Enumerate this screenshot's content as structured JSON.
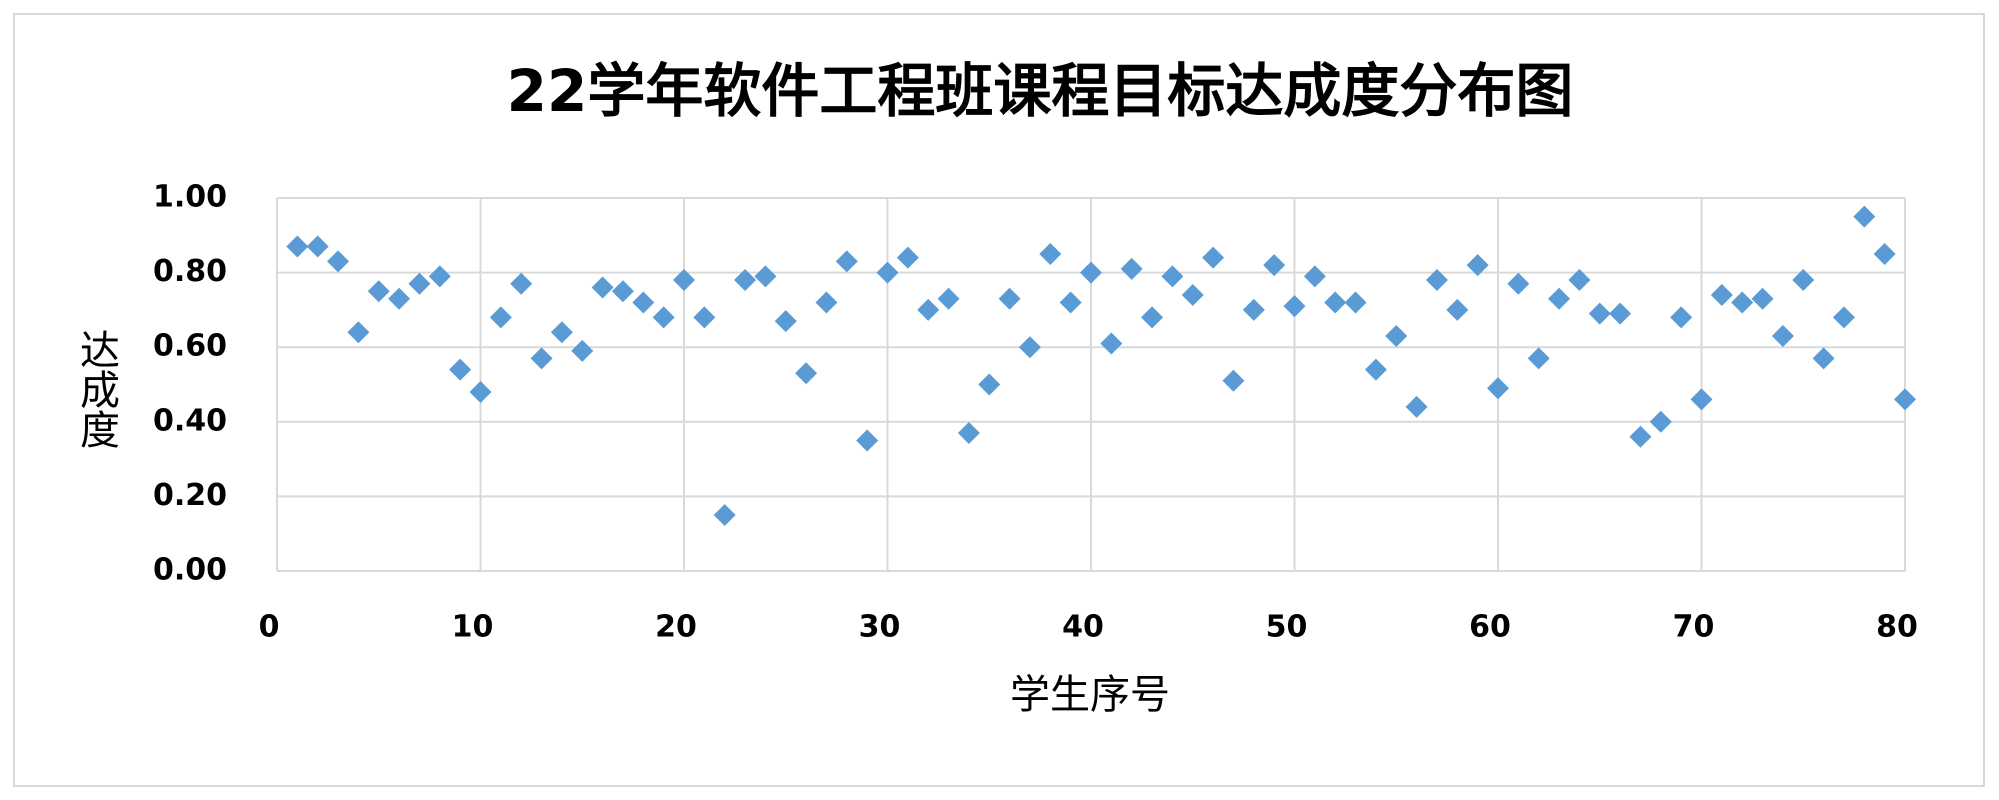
{
  "chart_data": {
    "type": "scatter",
    "title": "22学年软件工程班课程目标达成度分布图",
    "x_label": "学生序号",
    "y_label": "达成度",
    "color": "#5b9bd5",
    "grid": true,
    "xlim": [
      0,
      80
    ],
    "xticks": [
      0,
      10,
      20,
      30,
      40,
      50,
      60,
      70,
      80
    ],
    "ylim": [
      0,
      1
    ],
    "yticks": [
      {
        "value": 0,
        "label": "0.00"
      },
      {
        "value": 0.2,
        "label": "0.20"
      },
      {
        "value": 0.4,
        "label": "0.40"
      },
      {
        "value": 0.6,
        "label": "0.60"
      },
      {
        "value": 0.8,
        "label": "0.80"
      },
      {
        "value": 1,
        "label": "1.00"
      }
    ],
    "x": [
      1,
      2,
      3,
      4,
      5,
      6,
      7,
      8,
      9,
      10,
      11,
      12,
      13,
      14,
      15,
      16,
      17,
      18,
      19,
      20,
      21,
      22,
      23,
      24,
      25,
      26,
      27,
      28,
      29,
      30,
      31,
      32,
      33,
      34,
      35,
      36,
      37,
      38,
      39,
      40,
      41,
      42,
      43,
      44,
      45,
      46,
      47,
      48,
      49,
      50,
      51,
      52,
      53,
      54,
      55,
      56,
      57,
      58,
      59,
      60,
      61,
      62,
      63,
      64,
      65,
      66,
      67,
      68,
      69,
      70,
      71,
      72,
      73,
      74,
      75,
      76,
      77,
      78,
      79,
      80
    ],
    "values": [
      0.87,
      0.87,
      0.83,
      0.64,
      0.75,
      0.73,
      0.77,
      0.79,
      0.54,
      0.48,
      0.68,
      0.77,
      0.57,
      0.64,
      0.59,
      0.76,
      0.75,
      0.72,
      0.68,
      0.78,
      0.68,
      0.15,
      0.78,
      0.79,
      0.67,
      0.53,
      0.72,
      0.83,
      0.35,
      0.8,
      0.84,
      0.7,
      0.73,
      0.37,
      0.5,
      0.73,
      0.6,
      0.85,
      0.72,
      0.8,
      0.61,
      0.81,
      0.68,
      0.79,
      0.74,
      0.84,
      0.51,
      0.7,
      0.82,
      0.71,
      0.79,
      0.72,
      0.72,
      0.54,
      0.63,
      0.44,
      0.78,
      0.7,
      0.82,
      0.49,
      0.77,
      0.57,
      0.73,
      0.78,
      0.69,
      0.69,
      0.36,
      0.4,
      0.68,
      0.46,
      0.74,
      0.72,
      0.73,
      0.63,
      0.78,
      0.57,
      0.68,
      0.95,
      0.85,
      0.46
    ]
  }
}
